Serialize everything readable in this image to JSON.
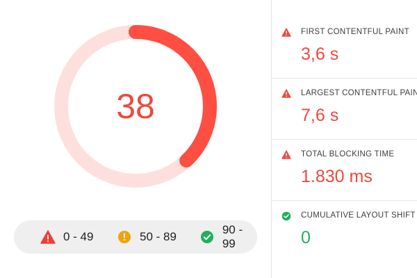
{
  "score": {
    "value": "38",
    "fraction": 0.38,
    "color_fail": "#ff4e42",
    "track_color": "#fde0dd"
  },
  "legend": {
    "fail": {
      "label": "0 - 49",
      "icon": "red-triangle-warning-icon",
      "color": "#f03e37"
    },
    "average": {
      "label": "50 - 89",
      "icon": "orange-circle-warning-icon",
      "color": "#f2a20c"
    },
    "pass": {
      "label": "90 - 99",
      "icon": "green-circle-check-icon",
      "color": "#1fb05e"
    }
  },
  "metrics": [
    {
      "label": "FIRST CONTENTFUL PAINT",
      "value": "3,6 s",
      "status": "fail",
      "icon": "warning-triangle-icon"
    },
    {
      "label": "LARGEST CONTENTFUL PAINT",
      "value": "7,6 s",
      "status": "fail",
      "icon": "warning-triangle-icon"
    },
    {
      "label": "TOTAL BLOCKING TIME",
      "value": "1.830 ms",
      "status": "fail",
      "icon": "warning-triangle-icon"
    },
    {
      "label": "CUMULATIVE LAYOUT SHIFT",
      "value": "0",
      "status": "pass",
      "icon": "check-circle-icon"
    }
  ]
}
